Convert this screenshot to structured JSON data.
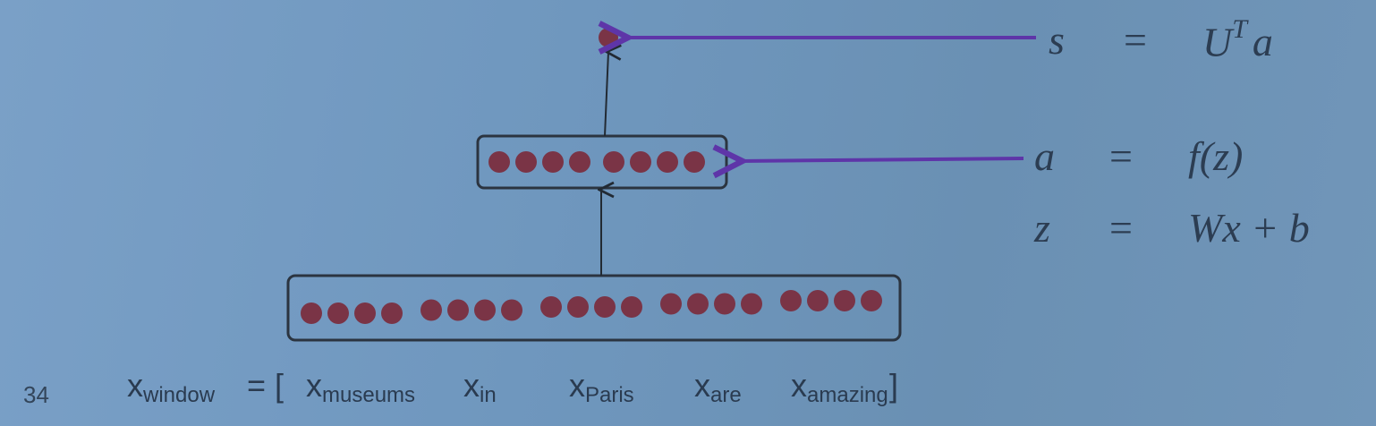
{
  "slide_number": "34",
  "equations": [
    {
      "lhs": "s",
      "eq": "=",
      "rhs": "U",
      "rhs_sup": "T",
      "rhs_tail": "a"
    },
    {
      "lhs": "a",
      "eq": "=",
      "rhs": "f(z)"
    },
    {
      "lhs": "z",
      "eq": "=",
      "rhs": "Wx + b"
    }
  ],
  "window": {
    "base": "x",
    "label_sub": "window",
    "assign": "= [",
    "close": "]",
    "words": [
      "museums",
      "in",
      "Paris",
      "are",
      "amazing"
    ]
  },
  "colors": {
    "background": "#7197bd",
    "neuron": "#7a3446",
    "box_stroke": "#2b3440",
    "arrow_purple": "#5e35a8",
    "arrow_black": "#222a33"
  },
  "layers": {
    "input_groups": 5,
    "input_neurons_per_group": 4,
    "hidden_neurons": 8,
    "output_neurons": 1
  }
}
